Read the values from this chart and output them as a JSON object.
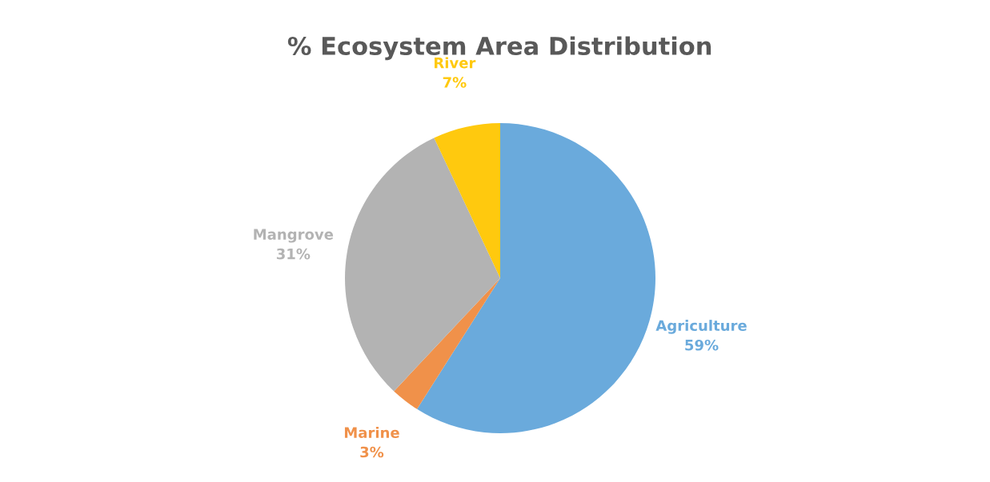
{
  "chart_data": {
    "type": "pie",
    "title": "% Ecosystem Area Distribution",
    "categories": [
      "Agriculture",
      "Marine",
      "Mangrove",
      "River"
    ],
    "values": [
      59,
      3,
      31,
      7
    ],
    "value_labels": [
      "59%",
      "3%",
      "31%",
      "7%"
    ],
    "colors": [
      "#6aaadc",
      "#f0914a",
      "#b3b3b3",
      "#ffc90e"
    ]
  }
}
